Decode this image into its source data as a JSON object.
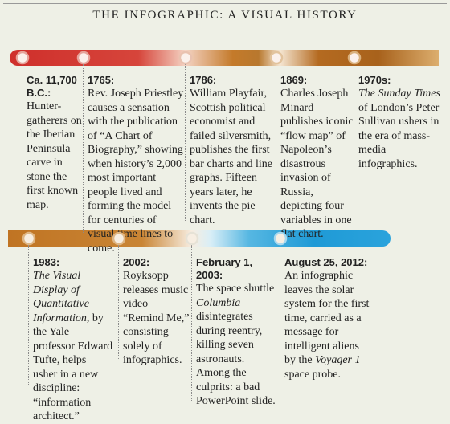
{
  "title": "THE INFOGRAPHIC: A VISUAL HISTORY",
  "timeline": [
    {
      "events": [
        {
          "date": "Ca. 11,700 B.C.:",
          "body": [
            "Hunter-gatherers on the Iberian Peninsula carve in stone the first known map."
          ]
        },
        {
          "date": "1765:",
          "body": [
            "Rev. Joseph Priestley causes a sensation with the publication of “A Chart of Biography,” showing when history’s 2,000 most important people lived and forming the model for centuries of visual time lines to come."
          ]
        },
        {
          "date": "1786:",
          "body": [
            "William Playfair, Scottish political economist and failed silversmith, publishes the first bar charts and line graphs. Fifteen years later, he invents the pie chart."
          ]
        },
        {
          "date": "1869:",
          "body": [
            "Charles Joseph Minard publishes iconic “flow map” of Napoleon’s disastrous invasion of Russia, depicting four variables in one flat chart."
          ]
        },
        {
          "date": "1970s:",
          "body": [
            "The Sunday Times",
            " of London’s Peter Sullivan ushers in the era of mass-media infographics."
          ]
        }
      ]
    },
    {
      "events": [
        {
          "date": "1983:",
          "body": [
            "The Visual Display of Quantitative Information",
            ", by the Yale professor Edward Tufte, helps usher in a new discipline: “information architect.”"
          ]
        },
        {
          "date": "2002:",
          "body": [
            "Royksopp releases music video “Remind Me,” consisting solely of infographics."
          ]
        },
        {
          "date": "February 1, 2003:",
          "body": [
            "The space shuttle ",
            "Columbia",
            " disintegrates during reentry, killing seven astronauts. Among the culprits: a bad PowerPoint slide."
          ]
        },
        {
          "date": "August 25, 2012:",
          "body": [
            "An infographic leaves the solar system for the first time, carried as a message for intelligent aliens by the ",
            "Voyager 1",
            " space probe."
          ]
        }
      ]
    }
  ]
}
